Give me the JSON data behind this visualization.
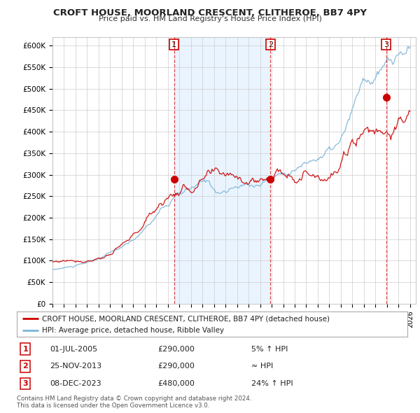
{
  "title": "CROFT HOUSE, MOORLAND CRESCENT, CLITHEROE, BB7 4PY",
  "subtitle": "Price paid vs. HM Land Registry's House Price Index (HPI)",
  "ylim": [
    0,
    620000
  ],
  "yticks": [
    0,
    50000,
    100000,
    150000,
    200000,
    250000,
    300000,
    350000,
    400000,
    450000,
    500000,
    550000,
    600000
  ],
  "xlim_start": 1995.0,
  "xlim_end": 2026.5,
  "hpi_color": "#7ab4d8",
  "price_color": "#cc0000",
  "marker_color": "#cc0000",
  "shade_color": "#ddeeff",
  "purchase_dates": [
    2005.54,
    2013.9,
    2023.93
  ],
  "purchase_prices": [
    290000,
    290000,
    480000
  ],
  "purchase_labels": [
    "1",
    "2",
    "3"
  ],
  "legend_label_house": "CROFT HOUSE, MOORLAND CRESCENT, CLITHEROE, BB7 4PY (detached house)",
  "legend_label_hpi": "HPI: Average price, detached house, Ribble Valley",
  "table_rows": [
    {
      "label": "1",
      "date": "01-JUL-2005",
      "price": "£290,000",
      "rel": "5% ↑ HPI"
    },
    {
      "label": "2",
      "date": "25-NOV-2013",
      "price": "£290,000",
      "rel": "≈ HPI"
    },
    {
      "label": "3",
      "date": "08-DEC-2023",
      "price": "£480,000",
      "rel": "24% ↑ HPI"
    }
  ],
  "footnote": "Contains HM Land Registry data © Crown copyright and database right 2024.\nThis data is licensed under the Open Government Licence v3.0.",
  "background_color": "#ffffff",
  "grid_color": "#cccccc"
}
